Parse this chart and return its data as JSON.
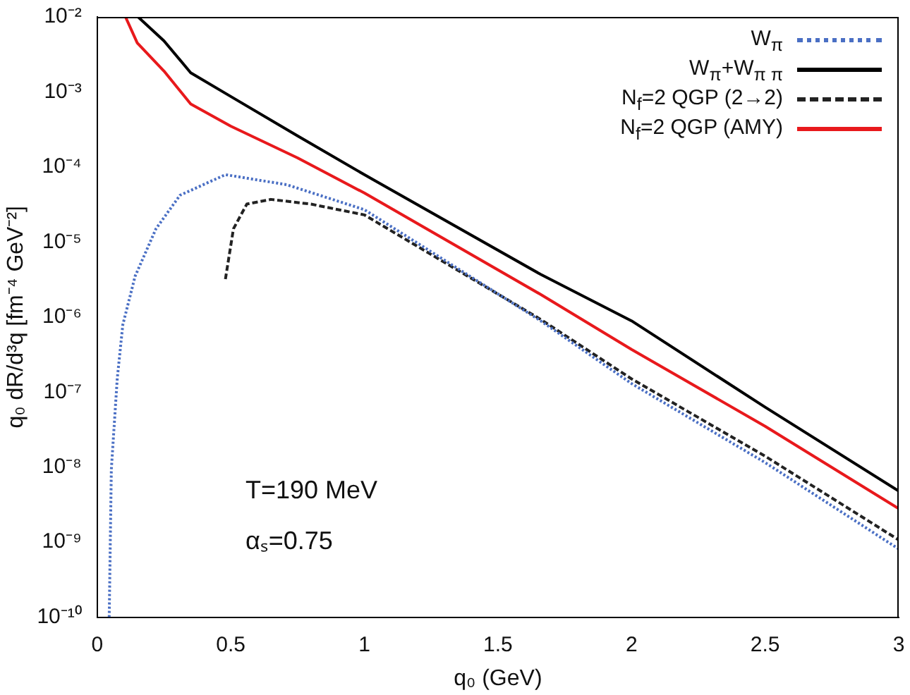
{
  "chart_data": {
    "type": "line",
    "xlabel": "q₀ (GeV)",
    "ylabel": "q₀ dR/d³q [fm⁻⁴ GeV⁻²]",
    "log": "y",
    "xlim": [
      0,
      3
    ],
    "ylim": [
      1e-10,
      0.01
    ],
    "xticks": [
      0,
      0.5,
      1,
      1.5,
      2,
      2.5,
      3
    ],
    "yticks": [
      {
        "value": 1e-10,
        "label": "10⁻¹⁰"
      },
      {
        "value": 1e-09,
        "label": "10⁻⁹"
      },
      {
        "value": 1e-08,
        "label": "10⁻⁸"
      },
      {
        "value": 1e-07,
        "label": "10⁻⁷"
      },
      {
        "value": 1e-06,
        "label": "10⁻⁶"
      },
      {
        "value": 1e-05,
        "label": "10⁻⁵"
      },
      {
        "value": 0.0001,
        "label": "10⁻⁴"
      },
      {
        "value": 0.001,
        "label": "10⁻³"
      },
      {
        "value": 0.01,
        "label": "10⁻²"
      }
    ],
    "grid": false,
    "legend": "top right",
    "marker": "none",
    "annotations": [
      "T=190 MeV",
      "αₛ=0.75"
    ],
    "series": [
      {
        "name": "W$_{π}$",
        "color": "#4a6fc4",
        "line_style": "dotted",
        "x": [
          0.045,
          0.053,
          0.075,
          0.096,
          0.142,
          0.22,
          0.31,
          0.48,
          0.71,
          1.0,
          1.66,
          2.0,
          2.5,
          3.0
        ],
        "values": [
          1e-10,
          9.3e-09,
          1.5e-07,
          7.9e-07,
          3.5e-06,
          1.5e-05,
          4.2e-05,
          7.9e-05,
          5.8e-05,
          2.7e-05,
          8.9e-07,
          1.3e-07,
          1.15e-08,
          8.1e-10
        ]
      },
      {
        "name": "W$_{π}$+W$_{π π}$",
        "color": "#000000",
        "line_style": "solid",
        "x": [
          0.153,
          0.25,
          0.35,
          0.5,
          0.75,
          1.0,
          1.66,
          2.0,
          2.5,
          3.0
        ],
        "values": [
          0.01,
          0.0048,
          0.0018,
          0.00087,
          0.00026,
          7.9e-05,
          3.7e-06,
          8.9e-07,
          6.3e-08,
          4.8e-09
        ]
      },
      {
        "name": "N$_{f}$=2 QGP (2→2)",
        "color": "#222222",
        "line_style": "dashed",
        "x": [
          0.48,
          0.51,
          0.56,
          0.65,
          0.8,
          1.0,
          1.66,
          2.0,
          2.5,
          3.0
        ],
        "values": [
          3.2e-06,
          1.5e-05,
          3.2e-05,
          3.7e-05,
          3.2e-05,
          2.3e-05,
          9.3e-07,
          1.5e-07,
          1.4e-08,
          1.07e-09
        ]
      },
      {
        "name": "N$_{f}$=2 QGP (AMY)",
        "color": "#e8191c",
        "line_style": "solid",
        "x": [
          0.106,
          0.15,
          0.25,
          0.35,
          0.5,
          0.75,
          1.0,
          1.66,
          2.0,
          2.5,
          3.0
        ],
        "values": [
          0.01,
          0.0045,
          0.0019,
          0.00069,
          0.00035,
          0.000132,
          4.5e-05,
          2e-06,
          3.7e-07,
          3.5e-08,
          2.8e-09
        ]
      }
    ]
  }
}
